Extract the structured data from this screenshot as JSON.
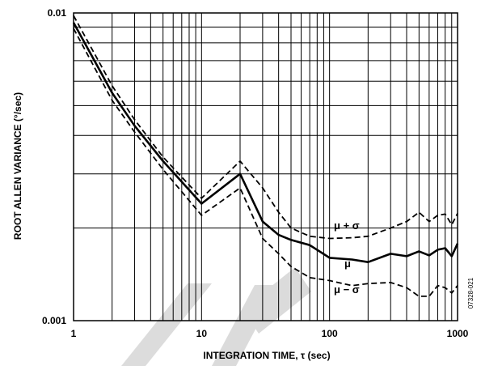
{
  "chart_data": {
    "type": "line",
    "title": "",
    "xlabel": "INTEGRATION TIME, τ (sec)",
    "ylabel": "ROOT ALLEN VARIANCE (°/sec)",
    "xscale": "log",
    "yscale": "log",
    "xlim": [
      1,
      1000
    ],
    "ylim": [
      0.001,
      0.01
    ],
    "grid": true,
    "x_ticks": [
      "1",
      "10",
      "100",
      "1000"
    ],
    "y_ticks": [
      "0.001",
      "0.01"
    ],
    "series": [
      {
        "name": "μ + σ",
        "style": "dashed",
        "color": "#000000",
        "x": [
          1,
          2,
          3,
          5,
          10,
          20,
          30,
          40,
          50,
          70,
          100,
          150,
          200,
          300,
          400,
          500,
          600,
          700,
          800,
          900,
          1000
        ],
        "y": [
          0.0098,
          0.0058,
          0.0045,
          0.0034,
          0.0025,
          0.0033,
          0.0027,
          0.00225,
          0.002,
          0.00188,
          0.00185,
          0.00186,
          0.00188,
          0.002,
          0.0021,
          0.00225,
          0.0021,
          0.0022,
          0.00222,
          0.00205,
          0.00223
        ]
      },
      {
        "name": "μ",
        "style": "solid",
        "color": "#000000",
        "x": [
          1,
          2,
          3,
          5,
          10,
          20,
          30,
          40,
          50,
          70,
          100,
          150,
          200,
          300,
          400,
          500,
          600,
          700,
          800,
          900,
          1000
        ],
        "y": [
          0.0093,
          0.0055,
          0.0043,
          0.0033,
          0.0024,
          0.003,
          0.0021,
          0.0019,
          0.00183,
          0.00176,
          0.0016,
          0.00158,
          0.00155,
          0.00165,
          0.00162,
          0.00168,
          0.00163,
          0.0017,
          0.00172,
          0.00162,
          0.00178
        ]
      },
      {
        "name": "μ − σ",
        "style": "dashed",
        "color": "#000000",
        "x": [
          1,
          2,
          3,
          5,
          10,
          20,
          30,
          40,
          50,
          70,
          100,
          150,
          200,
          300,
          400,
          500,
          600,
          700,
          800,
          900,
          1000
        ],
        "y": [
          0.0089,
          0.0052,
          0.0041,
          0.0031,
          0.0022,
          0.0027,
          0.00185,
          0.00165,
          0.0015,
          0.00138,
          0.00135,
          0.0013,
          0.00132,
          0.00133,
          0.00128,
          0.0012,
          0.0012,
          0.0013,
          0.00128,
          0.00123,
          0.0013
        ]
      }
    ],
    "series_labels": [
      "μ + σ",
      "μ",
      "μ − σ"
    ],
    "figure_id": "07328-021"
  }
}
